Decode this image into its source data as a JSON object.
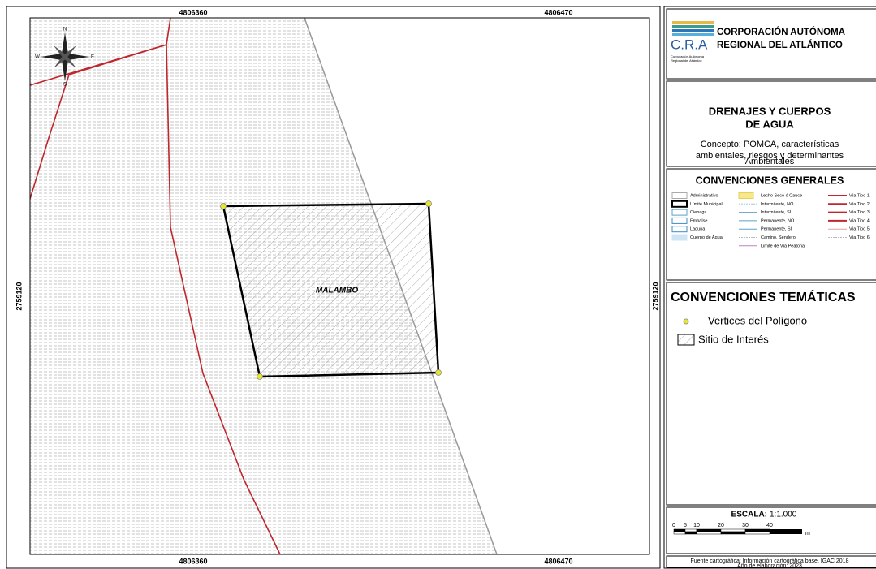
{
  "map": {
    "x_labels_top": [
      "4806360",
      "4806470"
    ],
    "x_labels_bottom": [
      "4806360",
      "4806470"
    ],
    "y_label_left": "2759120",
    "y_label_right": "2759120",
    "compass": [
      "N",
      "E",
      "S",
      "W"
    ],
    "site_label": "MALAMBO"
  },
  "header": {
    "org_line1": "CORPORACIÓN AUTÓNOMA",
    "org_line2": "REGIONAL DEL ATLÁNTICO",
    "acronym": "C.R.A",
    "org_small": [
      "Corporación Autónoma",
      "Regional del Atlántico"
    ]
  },
  "title": {
    "lines": [
      "DRENAJES Y CUERPOS",
      "DE AGUA"
    ],
    "concept": [
      "Concepto: POMCA, características",
      "ambientales, riesgos y determinantes",
      "Ambientales"
    ]
  },
  "general_legend": {
    "title": "CONVENCIONES GENERALES",
    "columns": [
      [
        "Administrativo",
        "Límite Municipal",
        "Cienaga",
        "Embalse",
        "Laguna",
        "Cuerpo de Agua"
      ],
      [
        "Lecho Seco ó Cauce",
        "Intermitente, NO",
        "Intermitente, SI",
        "Permanente, NO",
        "Permanente, SI",
        "Camino, Sendero",
        "Limite de Vía Peatonal"
      ],
      [
        "Vía Tipo 1",
        "Vía Tipo 2",
        "Vía Tipo 3",
        "Vía Tipo 4",
        "Vía Tipo 5",
        "Vía Tipo 6"
      ]
    ]
  },
  "thematic_legend": {
    "title": "CONVENCIONES TEMÁTICAS",
    "items": [
      "Vertices del Polígono",
      "Sitio de Interés"
    ]
  },
  "scale": {
    "title": "ESCALA:",
    "ratio": "1:1.000",
    "ticks": [
      "0",
      "5",
      "10",
      "20",
      "30",
      "40"
    ],
    "unit": "m"
  },
  "footer": {
    "source": "Fuente cartográfica: Información cartográfica base, IGAC 2018",
    "year": "Año de elaboración: 2023"
  }
}
